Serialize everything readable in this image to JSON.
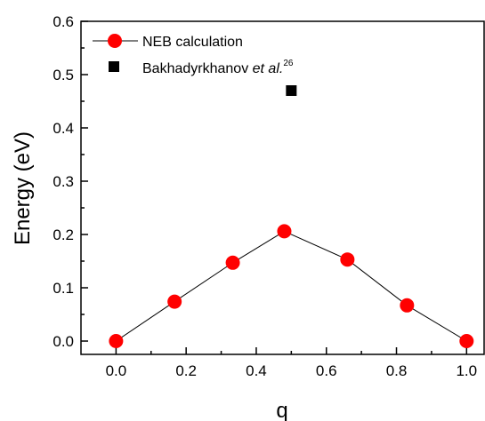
{
  "chart_data": {
    "type": "scatter",
    "title": "",
    "xlabel": "q",
    "ylabel": "Energy (eV)",
    "xlim": [
      -0.1,
      1.05
    ],
    "ylim": [
      -0.025,
      0.6
    ],
    "xticks": [
      "0.0",
      "0.2",
      "0.4",
      "0.6",
      "0.8",
      "1.0"
    ],
    "yticks": [
      "0.0",
      "0.1",
      "0.2",
      "0.3",
      "0.4",
      "0.5",
      "0.6"
    ],
    "grid": false,
    "legend_position": "top-left",
    "series": [
      {
        "name": "NEB calculation",
        "marker": "circle",
        "line": true,
        "color": "#ff0000",
        "x": [
          0.0,
          0.167,
          0.333,
          0.48,
          0.66,
          0.83,
          1.0
        ],
        "y": [
          0.0,
          0.074,
          0.147,
          0.206,
          0.153,
          0.067,
          0.0
        ]
      },
      {
        "name": "Bakhadyrkhanov et al.26",
        "name_parts": {
          "main": "Bakhadyrkhanov ",
          "italic": "et al.",
          "sup": "26"
        },
        "marker": "square",
        "line": false,
        "color": "#000000",
        "x": [
          0.5
        ],
        "y": [
          0.47
        ]
      }
    ]
  }
}
